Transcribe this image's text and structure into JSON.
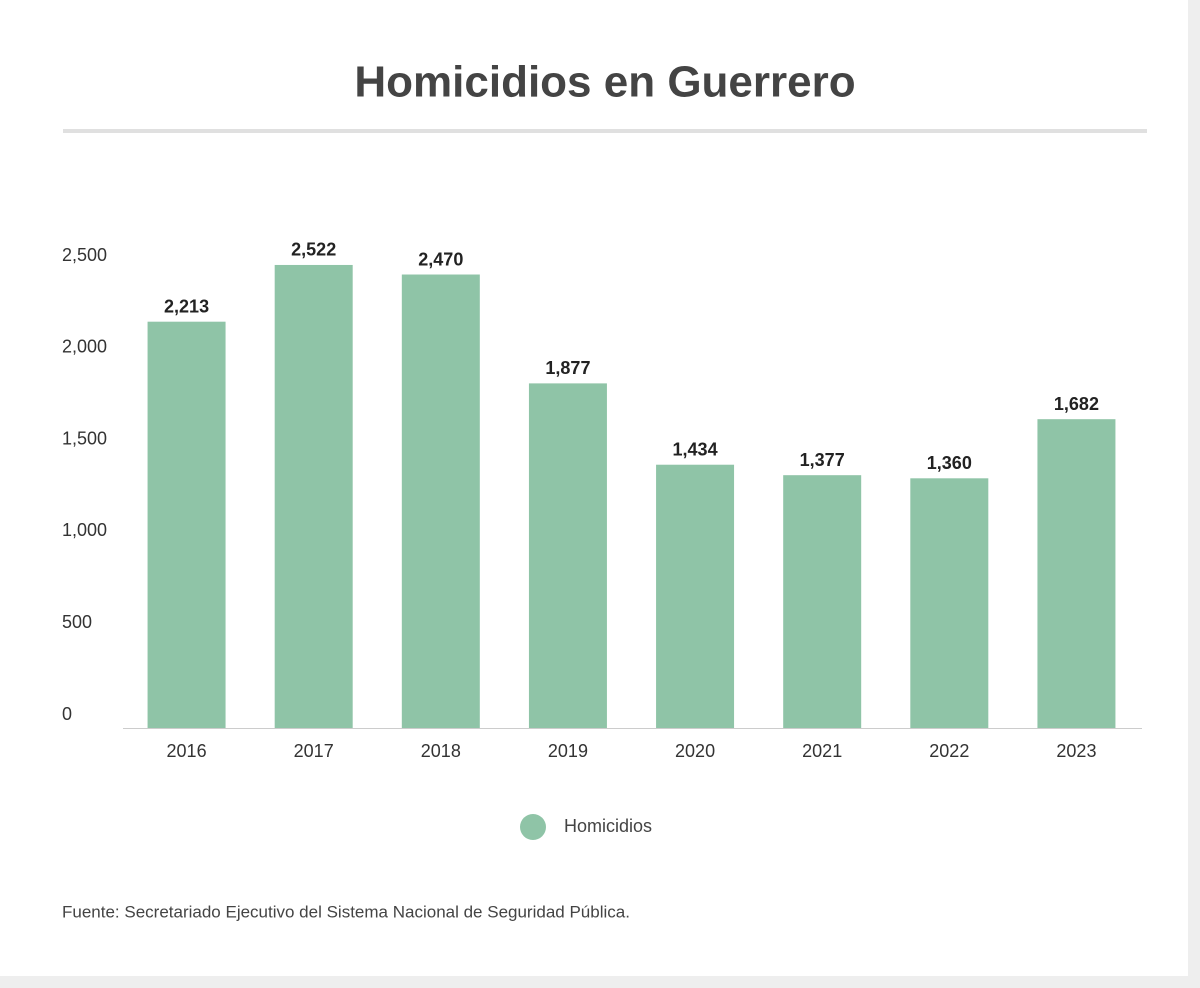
{
  "chart_data": {
    "type": "bar",
    "title": "Homicidios en Guerrero",
    "categories": [
      "2016",
      "2017",
      "2018",
      "2019",
      "2020",
      "2021",
      "2022",
      "2023"
    ],
    "series": [
      {
        "name": "Homicidios",
        "color": "#8fc4a7",
        "values": [
          2213,
          2522,
          2470,
          1877,
          1434,
          1377,
          1360,
          1682
        ],
        "value_labels": [
          "2,213",
          "2,522",
          "2,470",
          "1,877",
          "1,434",
          "1,377",
          "1,360",
          "1,682"
        ]
      }
    ],
    "ylim": [
      0,
      2500
    ],
    "yticks": [
      0,
      500,
      {
        "value": 1000,
        "label": "1,000"
      },
      {
        "value": 1500,
        "label": "1,500"
      },
      {
        "value": 2000,
        "label": "2,000"
      },
      {
        "value": 2500,
        "label": "2,500"
      }
    ],
    "grid": false,
    "legend": "bottom",
    "source": "Fuente: Secretariado Ejecutivo del Sistema Nacional de Seguridad Pública."
  }
}
